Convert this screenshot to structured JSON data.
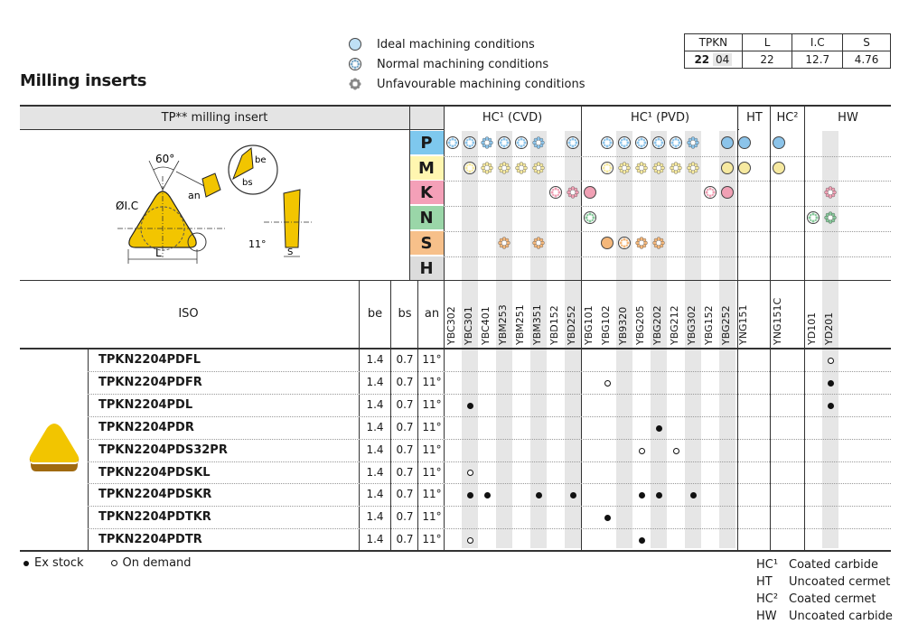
{
  "title": "Milling inserts",
  "legend": [
    {
      "label": "Ideal machining conditions",
      "icon": "ideal-circle-icon"
    },
    {
      "label": "Normal machining conditions",
      "icon": "normal-circle-icon"
    },
    {
      "label": "Unfavourable machining conditions",
      "icon": "unfavourable-circle-icon"
    }
  ],
  "spec": {
    "headers": [
      "TPKN",
      "L",
      "I.C",
      "S"
    ],
    "size_bold": "22",
    "size_rest": "04",
    "values": [
      "22",
      "12.7",
      "4.76"
    ]
  },
  "header_bar": {
    "insert": "TP** milling insert",
    "groups": [
      "HC¹ (CVD)",
      "HC¹ (PVD)",
      "HT",
      "HC²",
      "HW"
    ]
  },
  "drawing": {
    "angle": "60°",
    "an": "an",
    "be": "be",
    "bs": "bs",
    "ic": "ØI.C",
    "l": "L",
    "side_angle": "11°",
    "s": "S"
  },
  "materials": [
    {
      "letter": "P",
      "color": "#7ec8ee"
    },
    {
      "letter": "M",
      "color": "#fff6b0"
    },
    {
      "letter": "K",
      "color": "#f4a0b8"
    },
    {
      "letter": "N",
      "color": "#9ad6a8"
    },
    {
      "letter": "S",
      "color": "#f7c08a"
    },
    {
      "letter": "H",
      "color": "#dcdcdc"
    }
  ],
  "table_head": {
    "iso": "ISO",
    "be": "be",
    "bs": "bs",
    "an": "an"
  },
  "grades": [
    "YBC302",
    "YBC301",
    "YBC401",
    "YBM253",
    "YBM251",
    "YBM351",
    "YBD152",
    "YBD252",
    "YBG101",
    "YBG102",
    "YB9320",
    "YBG205",
    "YBG202",
    "YBG212",
    "YBG302",
    "YBG152",
    "YBG252",
    "YNG151",
    "YNG151C",
    "YD101",
    "YD201"
  ],
  "suitability": {
    "P": [
      [
        "YBC302",
        "n"
      ],
      [
        "YBC301",
        "n"
      ],
      [
        "YBC401",
        "u"
      ],
      [
        "YBM253",
        "n"
      ],
      [
        "YBM251",
        "n"
      ],
      [
        "YBM351",
        "u"
      ],
      [
        "YBD252",
        "n"
      ],
      [
        "YBG102",
        "n"
      ],
      [
        "YB9320",
        "n"
      ],
      [
        "YBG205",
        "n"
      ],
      [
        "YBG202",
        "n"
      ],
      [
        "YBG212",
        "n"
      ],
      [
        "YBG302",
        "u"
      ],
      [
        "YBG252",
        "i"
      ],
      [
        "YNG151",
        "i"
      ],
      [
        "YNG151C",
        "i"
      ]
    ],
    "M": [
      [
        "YBC301",
        "n"
      ],
      [
        "YBC401",
        "u"
      ],
      [
        "YBM253",
        "u"
      ],
      [
        "YBM251",
        "u"
      ],
      [
        "YBM351",
        "u"
      ],
      [
        "YBG102",
        "n"
      ],
      [
        "YB9320",
        "u"
      ],
      [
        "YBG205",
        "u"
      ],
      [
        "YBG202",
        "u"
      ],
      [
        "YBG212",
        "u"
      ],
      [
        "YBG302",
        "u"
      ],
      [
        "YBG252",
        "i"
      ],
      [
        "YNG151",
        "i"
      ],
      [
        "YNG151C",
        "i"
      ]
    ],
    "K": [
      [
        "YBD152",
        "n"
      ],
      [
        "YBD252",
        "u"
      ],
      [
        "YBG101",
        "i"
      ],
      [
        "YBG152",
        "n"
      ],
      [
        "YBG252",
        "i"
      ],
      [
        "YD201",
        "u"
      ]
    ],
    "N": [
      [
        "YBG101",
        "n"
      ],
      [
        "YD101",
        "n"
      ],
      [
        "YD201",
        "u"
      ]
    ],
    "S": [
      [
        "YBM253",
        "u"
      ],
      [
        "YBM351",
        "u"
      ],
      [
        "YBG102",
        "i"
      ],
      [
        "YB9320",
        "n"
      ],
      [
        "YBG205",
        "u"
      ],
      [
        "YBG202",
        "u"
      ]
    ],
    "H": []
  },
  "rows": [
    {
      "code": "TPKN2204PDFL",
      "be": "1.4",
      "bs": "0.7",
      "an": "11°",
      "marks": [
        [
          "YD201",
          "o"
        ]
      ]
    },
    {
      "code": "TPKN2204PDFR",
      "be": "1.4",
      "bs": "0.7",
      "an": "11°",
      "marks": [
        [
          "YBG102",
          "o"
        ],
        [
          "YD201",
          "e"
        ]
      ]
    },
    {
      "code": "TPKN2204PDL",
      "be": "1.4",
      "bs": "0.7",
      "an": "11°",
      "marks": [
        [
          "YBC301",
          "e"
        ],
        [
          "YD201",
          "e"
        ]
      ]
    },
    {
      "code": "TPKN2204PDR",
      "be": "1.4",
      "bs": "0.7",
      "an": "11°",
      "marks": [
        [
          "YBG202",
          "e"
        ]
      ]
    },
    {
      "code": "TPKN2204PDS32PR",
      "be": "1.4",
      "bs": "0.7",
      "an": "11°",
      "marks": [
        [
          "YBG205",
          "o"
        ],
        [
          "YBG212",
          "o"
        ]
      ]
    },
    {
      "code": "TPKN2204PDSKL",
      "be": "1.4",
      "bs": "0.7",
      "an": "11°",
      "marks": [
        [
          "YBC301",
          "o"
        ]
      ]
    },
    {
      "code": "TPKN2204PDSKR",
      "be": "1.4",
      "bs": "0.7",
      "an": "11°",
      "marks": [
        [
          "YBC301",
          "e"
        ],
        [
          "YBC401",
          "e"
        ],
        [
          "YBM351",
          "e"
        ],
        [
          "YBD252",
          "e"
        ],
        [
          "YBG205",
          "e"
        ],
        [
          "YBG202",
          "e"
        ],
        [
          "YBG302",
          "e"
        ]
      ]
    },
    {
      "code": "TPKN2204PDTKR",
      "be": "1.4",
      "bs": "0.7",
      "an": "11°",
      "marks": [
        [
          "YBG102",
          "e"
        ]
      ]
    },
    {
      "code": "TPKN2204PDTR",
      "be": "1.4",
      "bs": "0.7",
      "an": "11°",
      "marks": [
        [
          "YBC301",
          "o"
        ],
        [
          "YBG205",
          "e"
        ]
      ]
    }
  ],
  "stock_legend": {
    "ex": "Ex stock",
    "demand": "On demand"
  },
  "key": [
    {
      "abbr": "HC¹",
      "desc": "Coated carbide"
    },
    {
      "abbr": "HT",
      "desc": "Uncoated cermet"
    },
    {
      "abbr": "HC²",
      "desc": "Coated cermet"
    },
    {
      "abbr": "HW",
      "desc": "Uncoated carbide"
    }
  ],
  "colors": {
    "insert_yellow": "#f2c500",
    "insert_brown": "#a06a10",
    "grid": "#333333",
    "shade": "#e6e6e6"
  }
}
